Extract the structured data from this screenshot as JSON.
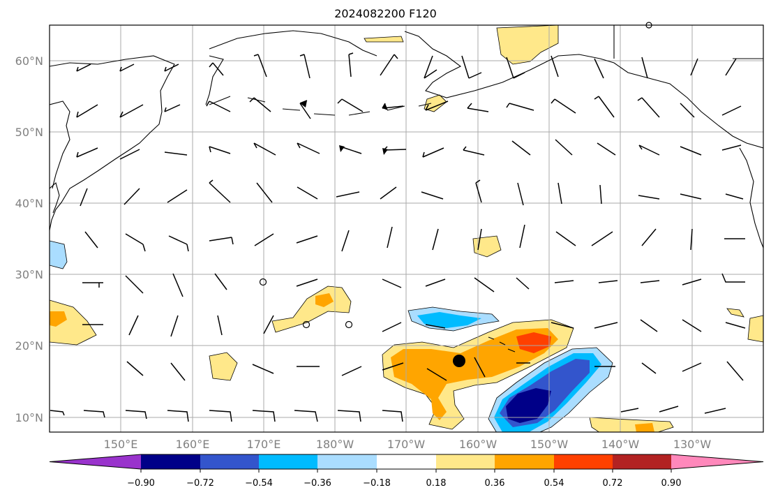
{
  "title": "2024082200 F120",
  "map": {
    "lat_labels": [
      "60°N",
      "50°N",
      "40°N",
      "30°N",
      "20°N",
      "10°N"
    ],
    "lon_labels": [
      "150°E",
      "160°E",
      "170°E",
      "180°W",
      "170°W",
      "160°W",
      "150°W",
      "140°W",
      "130°W"
    ],
    "marker": {
      "lat": 17.7,
      "lon": -162.5,
      "label": "storm-center"
    }
  },
  "colorbar": {
    "ticks": [
      "−0.90",
      "−0.72",
      "−0.54",
      "−0.36",
      "−0.18",
      "0.18",
      "0.36",
      "0.54",
      "0.72",
      "0.90"
    ],
    "colors": [
      "#9933cc",
      "#000088",
      "#3355cc",
      "#00bbff",
      "#aaddff",
      "#ffffff",
      "#ffe88a",
      "#ffa500",
      "#ff4000",
      "#b22222",
      "#ff88bb"
    ],
    "extend": "both"
  }
}
